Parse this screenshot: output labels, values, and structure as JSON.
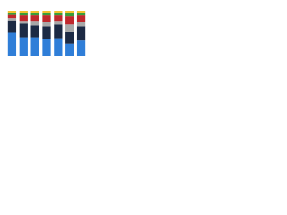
{
  "chart_data": {
    "type": "stacked-bar",
    "categories": [
      null,
      null,
      null,
      null,
      null,
      null,
      null
    ],
    "series": [
      {
        "color": "#2f7ed8",
        "values": [
          52,
          42,
          42,
          38,
          40,
          28,
          35
        ]
      },
      {
        "color": "#1c2a44",
        "values": [
          27,
          30,
          26,
          28,
          30,
          25,
          31
        ]
      },
      {
        "color": "#a8a8a8",
        "values": [
          5,
          6,
          10,
          10,
          8,
          17,
          10
        ]
      },
      {
        "color": "#c0282d",
        "values": [
          7,
          12,
          12,
          14,
          12,
          18,
          14
        ]
      },
      {
        "color": "#3a9d3a",
        "values": [
          4,
          5,
          5,
          5,
          5,
          7,
          5
        ]
      },
      {
        "color": "#f2c12e",
        "values": [
          5,
          5,
          5,
          5,
          5,
          5,
          5
        ]
      }
    ],
    "ylim": [
      0,
      100
    ]
  }
}
